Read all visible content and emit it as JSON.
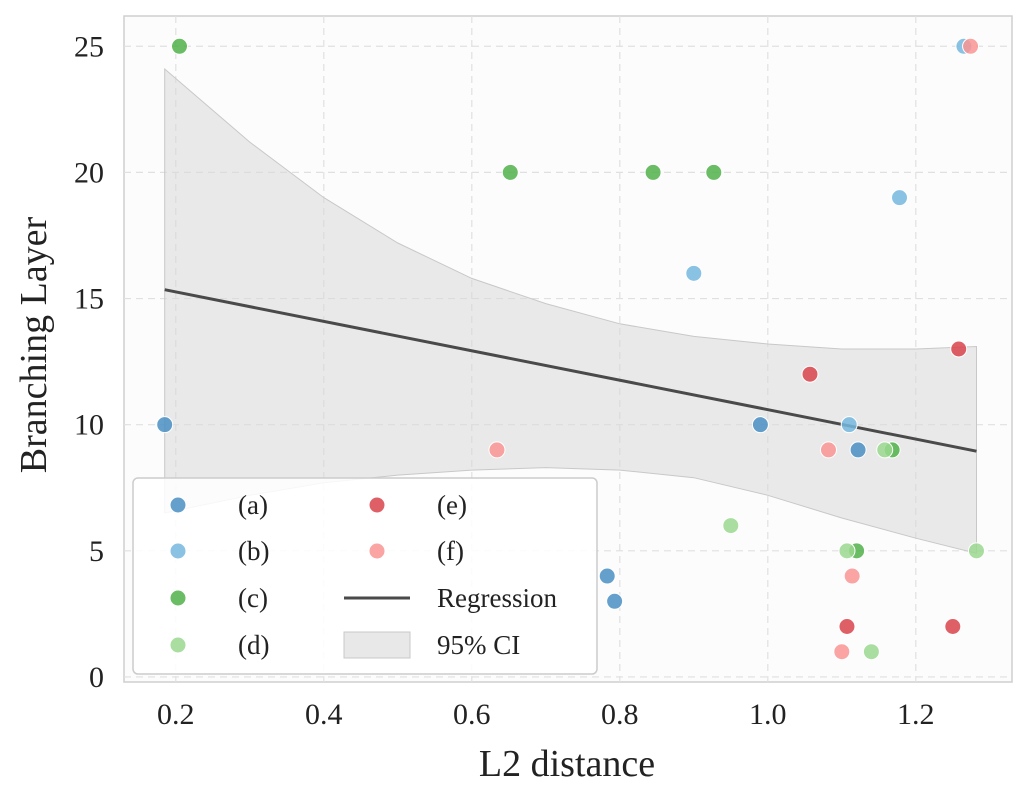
{
  "chart_data": {
    "type": "scatter",
    "xlabel": "L2 distance",
    "ylabel": "Branching Layer",
    "xlim": [
      0.13,
      1.33
    ],
    "ylim": [
      -0.2,
      26.2
    ],
    "xticks": [
      0.2,
      0.4,
      0.6,
      0.8,
      1.0,
      1.2
    ],
    "xtick_labels": [
      "0.2",
      "0.4",
      "0.6",
      "0.8",
      "1.0",
      "1.2"
    ],
    "yticks": [
      0,
      5,
      10,
      15,
      20,
      25
    ],
    "ytick_labels": [
      "0",
      "5",
      "10",
      "15",
      "20",
      "25"
    ],
    "grid": true,
    "legend_position": "bottom-left",
    "series": [
      {
        "name": "(a)",
        "color": "#4a8fc4",
        "points": [
          [
            0.185,
            10
          ],
          [
            0.99,
            10
          ],
          [
            1.122,
            9
          ],
          [
            0.783,
            4
          ],
          [
            0.793,
            3
          ]
        ]
      },
      {
        "name": "(b)",
        "color": "#76b7de",
        "points": [
          [
            1.265,
            25
          ],
          [
            1.178,
            19
          ],
          [
            0.9,
            16
          ],
          [
            1.11,
            10
          ]
        ]
      },
      {
        "name": "(c)",
        "color": "#50b04a",
        "points": [
          [
            0.205,
            25
          ],
          [
            0.652,
            20
          ],
          [
            0.845,
            20
          ],
          [
            0.927,
            20
          ],
          [
            1.168,
            9
          ],
          [
            1.12,
            5
          ]
        ]
      },
      {
        "name": "(d)",
        "color": "#9ad88f",
        "points": [
          [
            1.158,
            9
          ],
          [
            0.95,
            6
          ],
          [
            1.107,
            5
          ],
          [
            1.282,
            5
          ],
          [
            1.14,
            1
          ]
        ]
      },
      {
        "name": "(e)",
        "color": "#d9434b",
        "points": [
          [
            1.258,
            13
          ],
          [
            1.057,
            12
          ],
          [
            1.107,
            2
          ],
          [
            1.25,
            2
          ]
        ]
      },
      {
        "name": "(f)",
        "color": "#f99493",
        "points": [
          [
            1.274,
            25
          ],
          [
            1.082,
            9
          ],
          [
            0.634,
            9
          ],
          [
            1.114,
            4
          ],
          [
            1.1,
            1
          ]
        ]
      }
    ],
    "regression": {
      "name": "Regression",
      "color": "#4a4a4a",
      "x": [
        0.185,
        1.282
      ],
      "y": [
        15.35,
        8.95
      ]
    },
    "confidence_band": {
      "name": "95% CI",
      "color": "#d9d9d9",
      "x": [
        0.185,
        0.3,
        0.4,
        0.5,
        0.6,
        0.7,
        0.8,
        0.9,
        1.0,
        1.1,
        1.2,
        1.282
      ],
      "upper": [
        24.1,
        21.2,
        19.0,
        17.2,
        15.8,
        14.8,
        14.0,
        13.5,
        13.2,
        13.0,
        13.0,
        13.1
      ],
      "lower": [
        6.5,
        7.2,
        7.7,
        8.0,
        8.2,
        8.3,
        8.2,
        7.9,
        7.2,
        6.3,
        5.5,
        4.9
      ]
    }
  }
}
